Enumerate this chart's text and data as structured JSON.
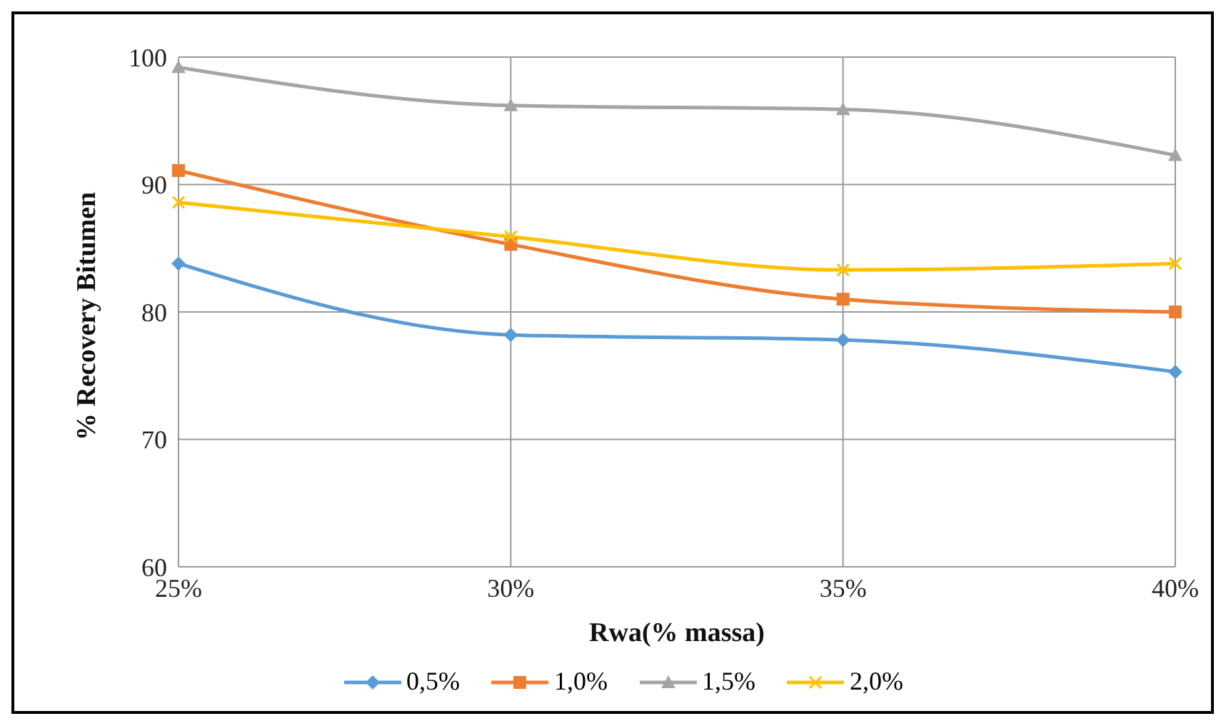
{
  "chart_data": {
    "type": "line",
    "xlabel": "Rwa(% massa)",
    "ylabel": "% Recovery Bitumen",
    "categories": [
      "25%",
      "30%",
      "35%",
      "40%"
    ],
    "series": [
      {
        "name": "0,5%",
        "color": "#5b9bd5",
        "marker": "diamond",
        "values": [
          83.8,
          78.2,
          77.8,
          75.3
        ]
      },
      {
        "name": "1,0%",
        "color": "#ed7d31",
        "marker": "square",
        "values": [
          91.1,
          85.3,
          81.0,
          80.0
        ]
      },
      {
        "name": "1,5%",
        "color": "#a5a5a5",
        "marker": "triangle",
        "values": [
          99.2,
          96.2,
          95.9,
          92.3
        ]
      },
      {
        "name": "2,0%",
        "color": "#ffc000",
        "marker": "cross",
        "values": [
          88.6,
          85.9,
          83.3,
          83.8
        ]
      }
    ],
    "ylim": [
      60,
      100
    ],
    "yticks": [
      60,
      70,
      80,
      90,
      100
    ],
    "grid": true,
    "legend": "bottom",
    "line_style": "solid"
  }
}
